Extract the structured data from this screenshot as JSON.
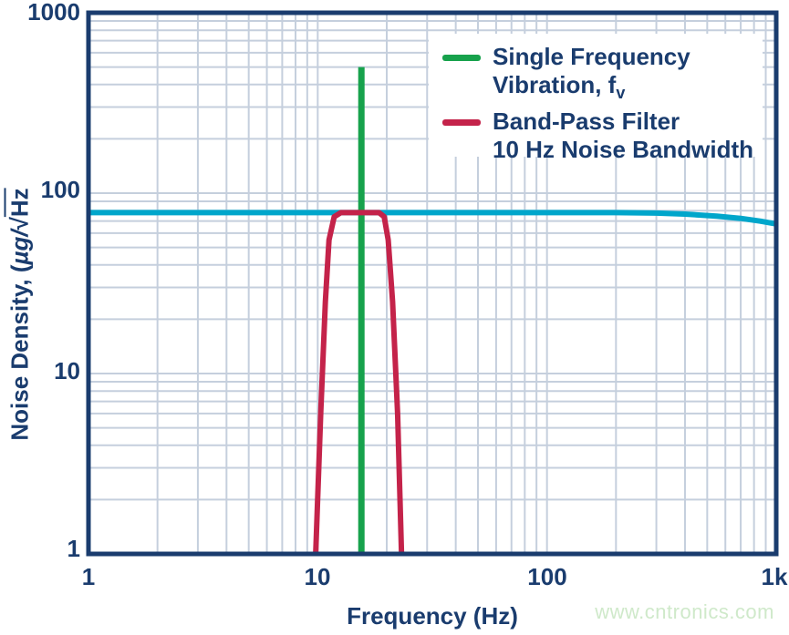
{
  "colors": {
    "navy": "#1a3c6e",
    "grid": "#c5cfdd",
    "green": "#17a24c",
    "red": "#c4234a",
    "cyan": "#00a6cb",
    "watermark_green": "#cfe9ca",
    "background": "#ffffff"
  },
  "axes": {
    "x_title": "Frequency (Hz)",
    "y_title_full": "Noise Density, (µg/√Hz",
    "y_title_parts": {
      "p1": "Noise Density, (",
      "p2": "µg/",
      "radical": "√",
      "radicand": "Hz"
    },
    "x_ticks": [
      "1",
      "10",
      "100",
      "1k"
    ],
    "y_ticks": [
      "1000",
      "100",
      "10",
      "1"
    ]
  },
  "legend": {
    "items": [
      {
        "line1": "Single Frequency",
        "line2": "Vibration, f",
        "line2_sub": "v",
        "swatch_color": "#17a24c"
      },
      {
        "line1": "Band-Pass Filter",
        "line2": "10 Hz Noise Bandwidth",
        "line2_sub": "",
        "swatch_color": "#c4234a"
      }
    ]
  },
  "watermark": "www.cntronics.com",
  "chart_data": {
    "type": "line",
    "title": "",
    "xlabel": "Frequency (Hz)",
    "ylabel": "Noise Density, (µg/√Hz",
    "x_scale": "log",
    "y_scale": "log",
    "xlim": [
      1,
      1000
    ],
    "ylim": [
      1,
      1000
    ],
    "x_tick_labels": [
      "1",
      "10",
      "100",
      "1k"
    ],
    "y_tick_labels": [
      "1",
      "10",
      "100",
      "1000"
    ],
    "grid": {
      "show": true,
      "minor_decades": true,
      "color": "#c5cfdd"
    },
    "legend_position": "top-right",
    "series": [
      {
        "id": "noise-density-floor",
        "label": "",
        "color": "#00a6cb",
        "stroke_width": 6,
        "points": [
          [
            1,
            78
          ],
          [
            50,
            78
          ],
          [
            100,
            78
          ],
          [
            200,
            78
          ],
          [
            300,
            77.5
          ],
          [
            400,
            76.5
          ],
          [
            550,
            74.5
          ],
          [
            700,
            72.5
          ],
          [
            850,
            70
          ],
          [
            1000,
            67.5
          ]
        ]
      },
      {
        "id": "single-frequency-vibration",
        "label": "Single Frequency Vibration, fv",
        "color": "#17a24c",
        "stroke_width": 7,
        "points": [
          [
            15.5,
            1
          ],
          [
            15.5,
            500
          ]
        ]
      },
      {
        "id": "band-pass-filter",
        "label": "Band-Pass Filter 10 Hz Noise Bandwidth",
        "color": "#c4234a",
        "stroke_width": 6,
        "points": [
          [
            9.8,
            1
          ],
          [
            10.3,
            6
          ],
          [
            10.8,
            25
          ],
          [
            11.2,
            55
          ],
          [
            11.8,
            74
          ],
          [
            12.6,
            78
          ],
          [
            15,
            78
          ],
          [
            18.5,
            78
          ],
          [
            19.5,
            74
          ],
          [
            20.3,
            55
          ],
          [
            21.2,
            25
          ],
          [
            22.3,
            6
          ],
          [
            23.2,
            1
          ]
        ]
      }
    ]
  }
}
